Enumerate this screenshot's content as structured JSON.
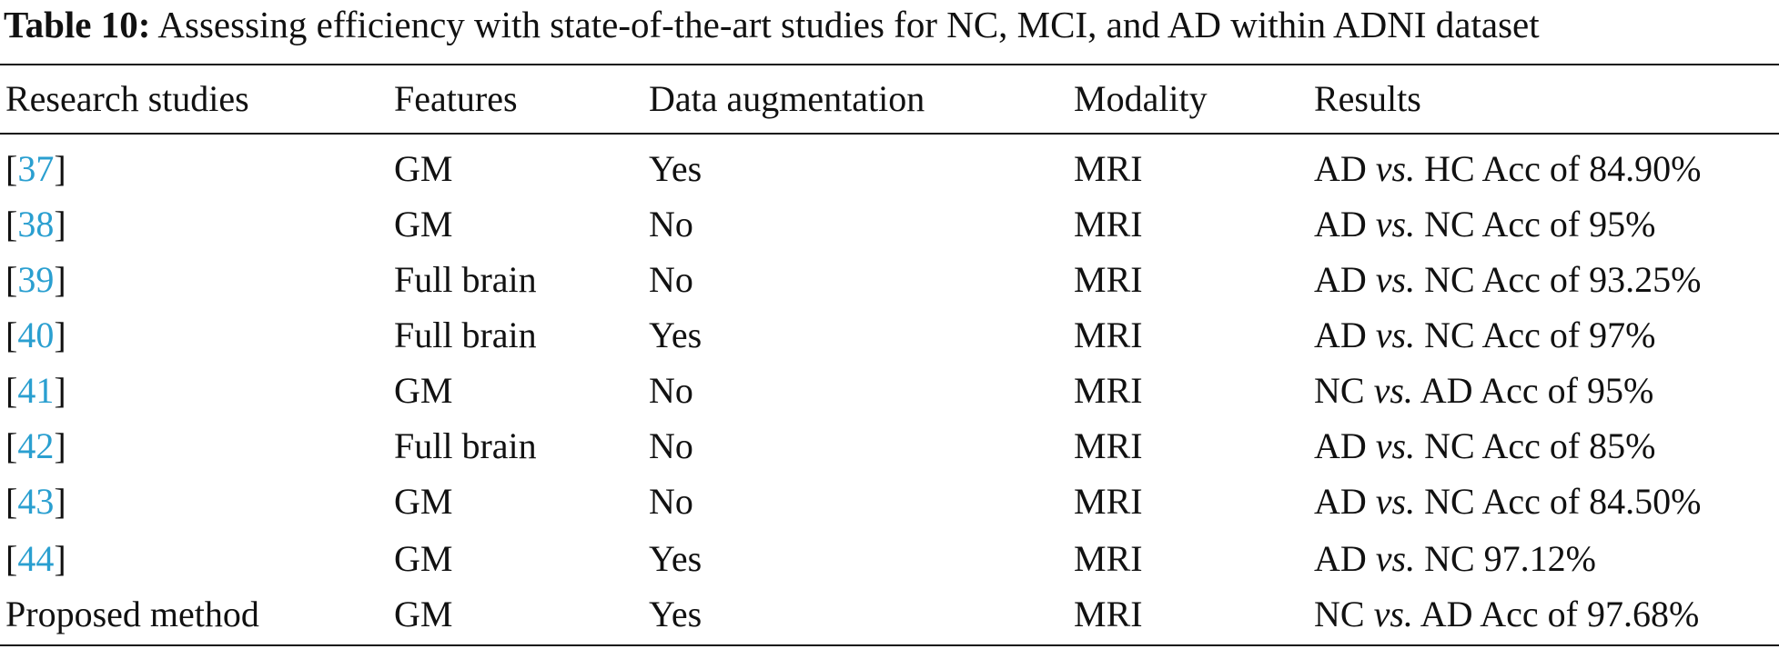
{
  "caption": {
    "label": "Table 10:",
    "text": "Assessing efficiency with state-of-the-art studies for NC, MCI, and AD within ADNI dataset"
  },
  "table": {
    "header": [
      "Research studies",
      "Features",
      "Data augmentation",
      "Modality",
      "Results"
    ],
    "rows": [
      [
        [
          "[",
          "37",
          "]"
        ],
        "GM",
        "Yes",
        "MRI",
        [
          "AD",
          "vs.",
          "HC Acc of 84.90%"
        ]
      ],
      [
        [
          "[",
          "38",
          "]"
        ],
        "GM",
        "No",
        "MRI",
        [
          "AD",
          "vs.",
          "NC Acc of 95%"
        ]
      ],
      [
        [
          "[",
          "39",
          "]"
        ],
        "Full brain",
        "No",
        "MRI",
        [
          "AD",
          "vs.",
          "NC Acc of 93.25%"
        ]
      ],
      [
        [
          "[",
          "40",
          "]"
        ],
        "Full brain",
        "Yes",
        "MRI",
        [
          "AD",
          "vs.",
          "NC Acc of 97%"
        ]
      ],
      [
        [
          "[",
          "41",
          "]"
        ],
        "GM",
        "No",
        "MRI",
        [
          "NC",
          "vs.",
          "AD Acc of 95%"
        ]
      ],
      [
        [
          "[",
          "42",
          "]"
        ],
        "Full brain",
        "No",
        "MRI",
        [
          "AD",
          "vs.",
          "NC Acc of 85%"
        ]
      ],
      [
        [
          "[",
          "43",
          "]"
        ],
        "GM",
        "No",
        "MRI",
        [
          "AD",
          "vs.",
          "NC Acc of 84.50%"
        ]
      ],
      [
        [
          "[",
          "44",
          "]"
        ],
        "GM",
        "Yes",
        "MRI",
        [
          "AD",
          "vs.",
          "NC 97.12%"
        ]
      ],
      [
        "Proposed method",
        "GM",
        "Yes",
        "MRI",
        [
          "NC",
          "vs.",
          "AD Acc of 97.68%"
        ]
      ]
    ]
  }
}
